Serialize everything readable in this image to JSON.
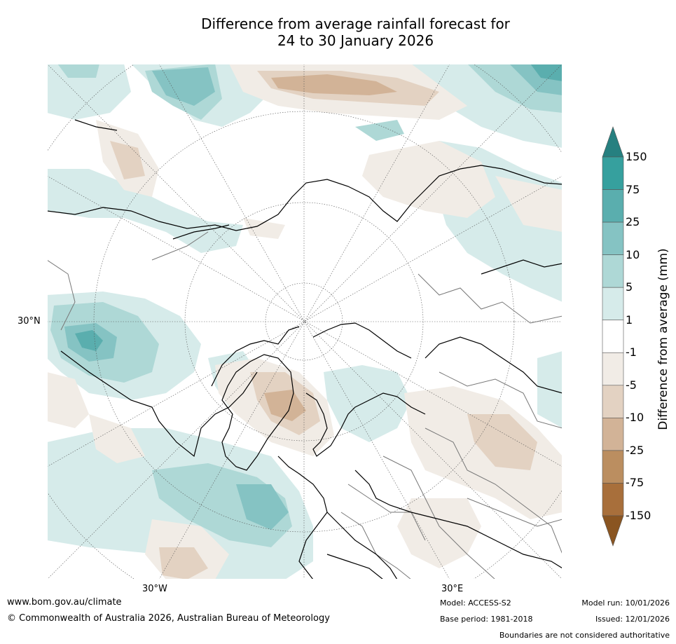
{
  "title_line1": "Difference from average rainfall forecast for",
  "title_line2": "24 to 30 January 2026",
  "map": {
    "labels": {
      "lat30n": "30°N",
      "lon30w": "30°W",
      "lon30e": "30°E"
    }
  },
  "colorbar": {
    "title": "Difference from average (mm)",
    "ticks": [
      "150",
      "75",
      "25",
      "10",
      "5",
      "1",
      "-1",
      "-5",
      "-10",
      "-25",
      "-75",
      "-150"
    ],
    "colors": [
      "#268080",
      "#36a09e",
      "#5aaeae",
      "#85c3c3",
      "#aed8d6",
      "#d6ebea",
      "#ffffff",
      "#f1ece6",
      "#e3d2c2",
      "#d2b397",
      "#bb8e60",
      "#a86f3b",
      "#8a5521"
    ]
  },
  "footer": {
    "url": "www.bom.gov.au/climate",
    "copyright": "© Commonwealth of Australia 2026, Australian Bureau of Meteorology",
    "model": "Model: ACCESS-S2",
    "base_period": "Base period: 1981-2018",
    "model_run": "Model run: 10/01/2026",
    "issued": "Issued: 12/01/2026",
    "disclaimer": "Boundaries are not considered authoritative"
  }
}
